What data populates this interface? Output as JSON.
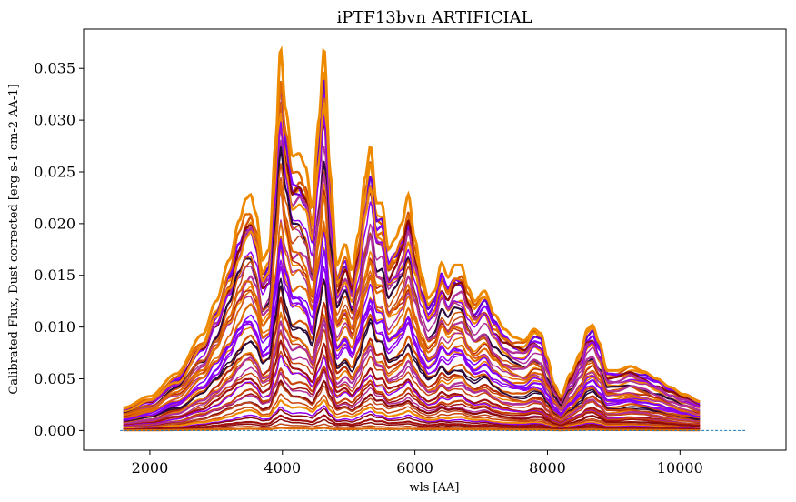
{
  "chart_data": {
    "type": "line",
    "title": "iPTF13bvn ARTIFICIAL",
    "xlabel": "wls [AA]",
    "ylabel": "Calibrated Flux, Dust corrected [erg s-1 cm-2 AA-1]",
    "xlim": [
      1000,
      11600
    ],
    "ylim": [
      -0.0019,
      0.0388
    ],
    "xticks": [
      2000,
      4000,
      6000,
      8000,
      10000
    ],
    "yticks": [
      0.0,
      0.005,
      0.01,
      0.015,
      0.02,
      0.025,
      0.03,
      0.035
    ],
    "xtick_labels": [
      "2000",
      "4000",
      "6000",
      "8000",
      "10000"
    ],
    "ytick_labels": [
      "0.000",
      "0.005",
      "0.010",
      "0.015",
      "0.020",
      "0.025",
      "0.030",
      "0.035"
    ],
    "grid": false,
    "baseline": {
      "x": [
        1550,
        11000
      ],
      "y": 0.0,
      "color": "#1f77b4",
      "style": "dashed"
    },
    "spectrum_range": [
      1600,
      10300
    ],
    "envelope": {
      "x": [
        1600,
        2000,
        2400,
        2800,
        3000,
        3200,
        3350,
        3450,
        3520,
        3600,
        3700,
        3800,
        3900,
        3970,
        4050,
        4150,
        4250,
        4350,
        4450,
        4550,
        4630,
        4720,
        4820,
        4950,
        5050,
        5150,
        5250,
        5330,
        5420,
        5500,
        5600,
        5700,
        5800,
        5900,
        6000,
        6100,
        6200,
        6300,
        6400,
        6500,
        6600,
        6700,
        6800,
        6900,
        7050,
        7200,
        7350,
        7500,
        7650,
        7800,
        7900,
        8000,
        8100,
        8200,
        8350,
        8500,
        8600,
        8680,
        8780,
        8900,
        9050,
        9250,
        9450,
        9650,
        9850,
        10050,
        10300
      ],
      "y": [
        0.0022,
        0.0033,
        0.0055,
        0.0093,
        0.0125,
        0.0165,
        0.0203,
        0.0224,
        0.0228,
        0.021,
        0.0165,
        0.0175,
        0.028,
        0.037,
        0.031,
        0.0265,
        0.0268,
        0.0255,
        0.0215,
        0.03,
        0.037,
        0.025,
        0.016,
        0.018,
        0.0155,
        0.019,
        0.0245,
        0.0275,
        0.022,
        0.022,
        0.0175,
        0.0185,
        0.02,
        0.0228,
        0.0185,
        0.015,
        0.0128,
        0.0135,
        0.0162,
        0.0148,
        0.016,
        0.016,
        0.0138,
        0.0125,
        0.0135,
        0.0112,
        0.0098,
        0.009,
        0.0087,
        0.0098,
        0.0094,
        0.007,
        0.0045,
        0.0033,
        0.0055,
        0.0075,
        0.0098,
        0.0102,
        0.0085,
        0.0058,
        0.0058,
        0.0062,
        0.0057,
        0.005,
        0.0042,
        0.0035,
        0.0028
      ]
    },
    "series_count": 50,
    "series_colors": [
      "#8b0a0a",
      "#a01010",
      "#b82a06",
      "#c8450a",
      "#d35400",
      "#e06a00",
      "#e98000",
      "#f08c00",
      "#8000ff",
      "#9000ee",
      "#6a00d0",
      "#2a0a3a",
      "#b0309a",
      "#c04a20"
    ]
  }
}
